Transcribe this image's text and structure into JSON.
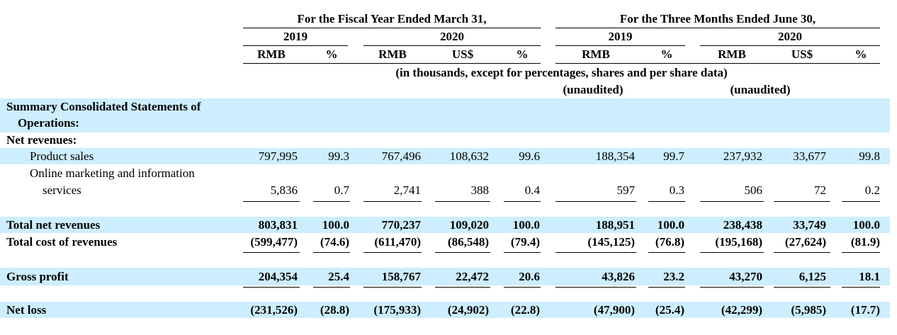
{
  "header": {
    "fy_title": "For the Fiscal Year Ended March 31,",
    "q_title": "For the Three Months Ended June 30,",
    "fy_years": [
      "2019",
      "2020"
    ],
    "q_years": [
      "2019",
      "2020"
    ],
    "units": [
      "RMB",
      "%",
      "RMB",
      "US$",
      "%",
      "RMB",
      "%",
      "RMB",
      "US$",
      "%"
    ],
    "note": "(in thousands, except for percentages, shares and per share data)",
    "unaudited": [
      "(unaudited)",
      "(unaudited)"
    ]
  },
  "rows": [
    {
      "key": "section",
      "label_lines": [
        "Summary Consolidated Statements of",
        "Operations:"
      ],
      "values": []
    },
    {
      "key": "net-revenues",
      "label_lines": [
        "Net revenues:"
      ],
      "values": []
    },
    {
      "key": "product-sales",
      "label_lines": [
        "Product sales"
      ],
      "values": [
        "797,995",
        "99.3",
        "767,496",
        "108,632",
        "99.6",
        "188,354",
        "99.7",
        "237,932",
        "33,677",
        "99.8"
      ]
    },
    {
      "key": "online-marketing",
      "label_lines": [
        "Online marketing and information",
        "services"
      ],
      "values": [
        "5,836",
        "0.7",
        "2,741",
        "388",
        "0.4",
        "597",
        "0.3",
        "506",
        "72",
        "0.2"
      ]
    },
    {
      "key": "total-net-revenues",
      "label_lines": [
        "Total net revenues"
      ],
      "values": [
        "803,831",
        "100.0",
        "770,237",
        "109,020",
        "100.0",
        "188,951",
        "100.0",
        "238,438",
        "33,749",
        "100.0"
      ]
    },
    {
      "key": "total-cost",
      "label_lines": [
        "Total cost of revenues"
      ],
      "values": [
        "(599,477)",
        "(74.6)",
        "(611,470)",
        "(86,548)",
        "(79.4)",
        "(145,125)",
        "(76.8)",
        "(195,168)",
        "(27,624)",
        "(81.9)"
      ]
    },
    {
      "key": "gross-profit",
      "label_lines": [
        "Gross profit"
      ],
      "values": [
        "204,354",
        "25.4",
        "158,767",
        "22,472",
        "20.6",
        "43,826",
        "23.2",
        "43,270",
        "6,125",
        "18.1"
      ]
    },
    {
      "key": "net-loss",
      "label_lines": [
        "Net loss"
      ],
      "values": [
        "(231,526)",
        "(28.8)",
        "(175,933)",
        "(24,902)",
        "(22.8)",
        "(47,900)",
        "(25.4)",
        "(42,299)",
        "(5,985)",
        "(17.7)"
      ]
    }
  ]
}
